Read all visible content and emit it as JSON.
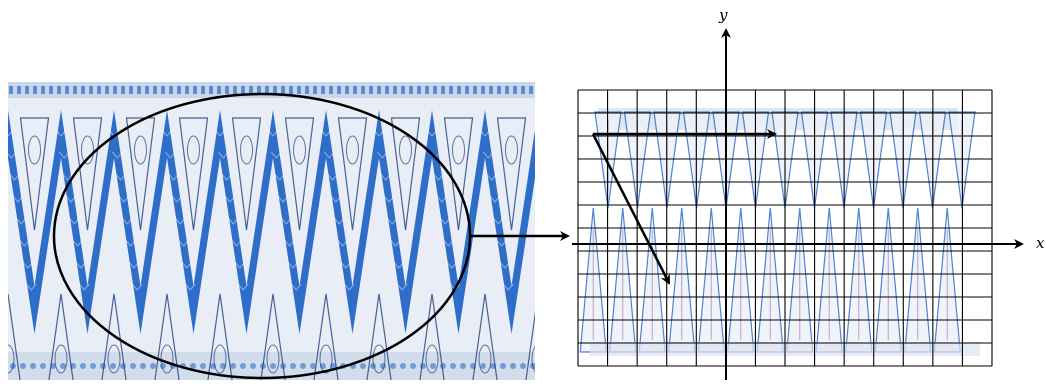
{
  "diagram": {
    "axis_x_label": "x",
    "axis_y_label": "y",
    "colors": {
      "fabric_blue": "#2e6ec9",
      "fabric_light": "#e9eef6",
      "motif_dark": "#1f3f7a",
      "grid": "#000000"
    },
    "grid": {
      "columns": 14,
      "rows": 12
    },
    "nodes": [
      {
        "name": "fabric-photo",
        "description_visible": false
      },
      {
        "name": "motif-grid",
        "description_visible": false
      }
    ],
    "vectors": [
      {
        "name": "horizontal-translation-vector"
      },
      {
        "name": "diagonal-translation-vector"
      }
    ]
  }
}
